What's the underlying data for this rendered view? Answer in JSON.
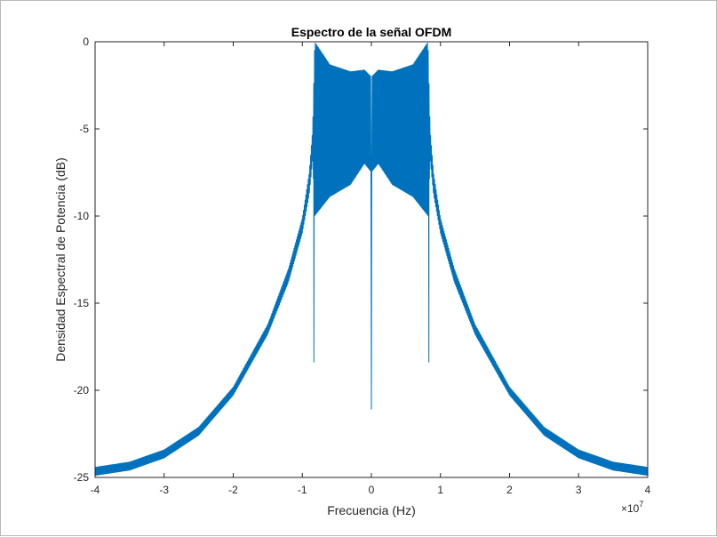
{
  "chart_data": {
    "type": "line",
    "title": "Espectro de la señal OFDM",
    "xlabel": "Frecuencia (Hz)",
    "ylabel": "Densidad Espectral de Potencia (dB)",
    "x_exponent_label": "×10",
    "x_exponent_power": "7",
    "xlim": [
      -40000000.0,
      40000000.0
    ],
    "ylim": [
      -25,
      0
    ],
    "x_ticks": [
      -40000000.0,
      -30000000.0,
      -20000000.0,
      -10000000.0,
      0,
      10000000.0,
      20000000.0,
      30000000.0,
      40000000.0
    ],
    "x_tick_labels": [
      "-4",
      "-3",
      "-2",
      "-1",
      "0",
      "1",
      "2",
      "3",
      "4"
    ],
    "y_ticks": [
      0,
      -5,
      -10,
      -15,
      -20,
      -25
    ],
    "y_tick_labels": [
      "0",
      "-5",
      "-10",
      "-15",
      "-20",
      "-25"
    ],
    "grid": false,
    "series": [
      {
        "color": "#0072bd",
        "band_edge_hz": 8200000.0,
        "center_notch_db": -21.1,
        "edge_spike_db": -18.4,
        "x": [
          -40000000.0,
          -35000000.0,
          -30000000.0,
          -25000000.0,
          -20000000.0,
          -15000000.0,
          -12000000.0,
          -10000000.0,
          -9000000.0,
          -8500000.0,
          -8200000.0,
          -6000000.0,
          -3000000.0,
          -1000000.0,
          0,
          1000000.0,
          3000000.0,
          6000000.0,
          8200000.0,
          8500000.0,
          9000000.0,
          10000000.0,
          12000000.0,
          15000000.0,
          20000000.0,
          25000000.0,
          30000000.0,
          35000000.0,
          40000000.0
        ],
        "upper": [
          -24.4,
          -24.1,
          -23.4,
          -22.1,
          -19.8,
          -16.2,
          -13.0,
          -10.1,
          -7.5,
          -5.0,
          0.0,
          -1.3,
          -1.7,
          -1.6,
          -2.0,
          -1.6,
          -1.7,
          -1.3,
          0.0,
          -5.0,
          -7.5,
          -10.1,
          -13.0,
          -16.2,
          -19.8,
          -22.1,
          -23.4,
          -24.1,
          -24.4
        ],
        "lower": [
          -24.9,
          -24.6,
          -23.9,
          -22.6,
          -20.3,
          -16.8,
          -13.8,
          -11.0,
          -8.8,
          -6.8,
          -10.0,
          -8.9,
          -8.2,
          -7.0,
          -7.5,
          -7.0,
          -8.2,
          -8.9,
          -10.0,
          -6.8,
          -8.8,
          -11.0,
          -13.8,
          -16.8,
          -20.3,
          -22.6,
          -23.9,
          -24.6,
          -24.9
        ]
      }
    ]
  }
}
